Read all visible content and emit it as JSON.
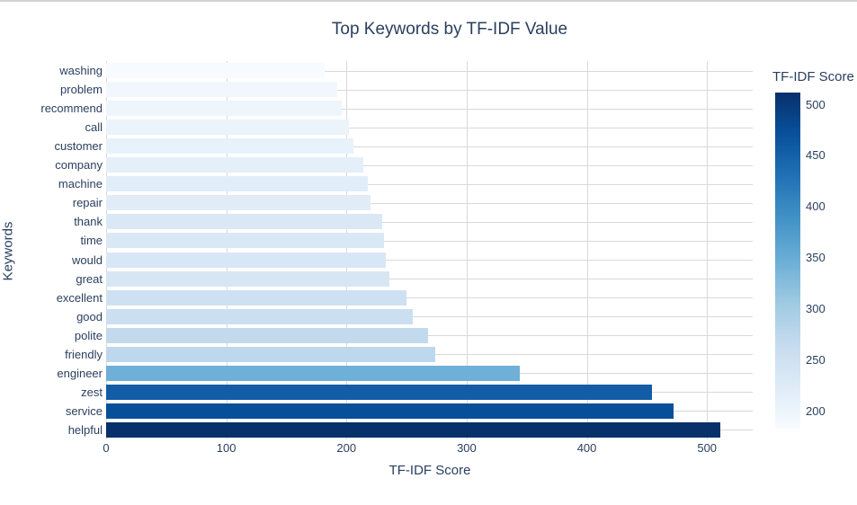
{
  "page": {
    "top_border_color": "#d2d2d2"
  },
  "chart_data": {
    "type": "bar",
    "orientation": "horizontal",
    "title": "Top Keywords by TF-IDF Value",
    "xlabel": "TF-IDF Score",
    "ylabel": "Keywords",
    "categories": [
      "washing",
      "problem",
      "recommend",
      "call",
      "customer",
      "company",
      "machine",
      "repair",
      "thank",
      "time",
      "would",
      "great",
      "excellent",
      "good",
      "polite",
      "friendly",
      "engineer",
      "zest",
      "service",
      "helpful"
    ],
    "values": [
      182,
      192,
      196,
      202,
      206,
      214,
      218,
      220,
      230,
      231,
      233,
      236,
      250,
      255,
      268,
      274,
      344,
      454,
      472,
      511
    ],
    "x_ticks": [
      0,
      100,
      200,
      300,
      400,
      500
    ],
    "xlim": [
      0,
      538
    ],
    "grid": true,
    "legend_position": "right-colorbar",
    "colorbar": {
      "title": "TF-IDF Score",
      "ticks": [
        500,
        450,
        400,
        350,
        300,
        250,
        200
      ],
      "cmin": 182,
      "cmax": 511
    },
    "colorscale": [
      [
        0.0,
        "#f7fbff"
      ],
      [
        0.125,
        "#deebf7"
      ],
      [
        0.25,
        "#c6dbef"
      ],
      [
        0.375,
        "#9ecae1"
      ],
      [
        0.5,
        "#6baed6"
      ],
      [
        0.625,
        "#4292c6"
      ],
      [
        0.75,
        "#2171b5"
      ],
      [
        0.875,
        "#08519c"
      ],
      [
        1.0,
        "#08306b"
      ]
    ],
    "colors": {
      "text": "#2a3f5f",
      "grid": "#d9d9d9",
      "zeroline": "#d9d9d9",
      "background": "#ffffff"
    }
  }
}
